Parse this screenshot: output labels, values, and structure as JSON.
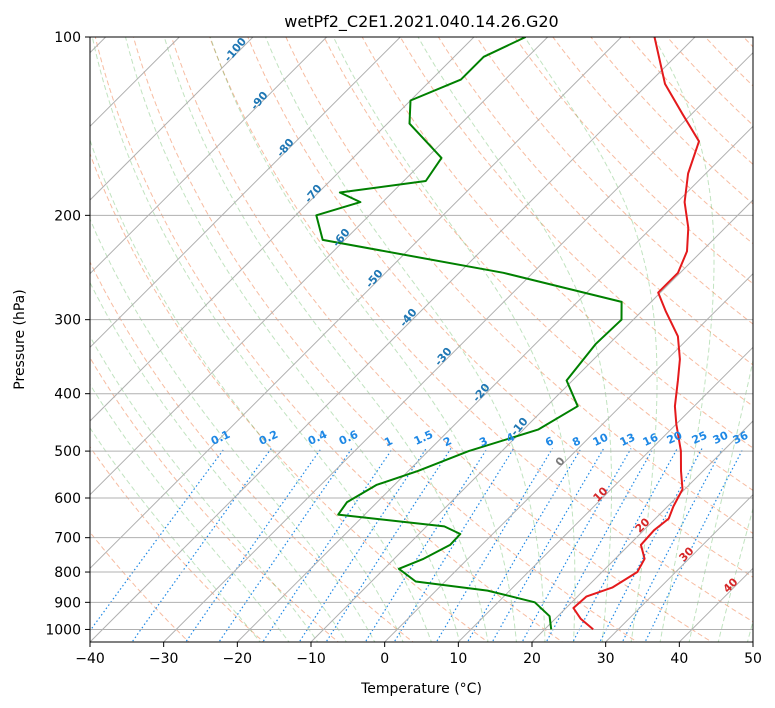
{
  "chart_data": {
    "type": "line",
    "title": "wetPf2_C2E1.2021.040.14.26.G20",
    "xlabel": "Temperature (°C)",
    "ylabel": "Pressure (hPa)",
    "xlim": [
      -40,
      50
    ],
    "ylim": [
      1050,
      100
    ],
    "y_scale": "log",
    "skew": true,
    "grid": true,
    "x_ticks": [
      "−40",
      "−30",
      "−20",
      "−10",
      "0",
      "10",
      "20",
      "30",
      "40",
      "50"
    ],
    "y_ticks": [
      "100",
      "200",
      "300",
      "400",
      "500",
      "600",
      "700",
      "800",
      "900",
      "1000"
    ],
    "series": [
      {
        "color": "#e41a1c",
        "points": [
          [
            26.6,
            1000
          ],
          [
            23.5,
            960
          ],
          [
            21.0,
            920
          ],
          [
            21.2,
            880
          ],
          [
            23.5,
            850
          ],
          [
            24.8,
            800
          ],
          [
            24.0,
            760
          ],
          [
            21.6,
            720
          ],
          [
            21.4,
            680
          ],
          [
            21.8,
            650
          ],
          [
            20.8,
            620
          ],
          [
            19.7,
            580
          ],
          [
            17.0,
            540
          ],
          [
            14.3,
            500
          ],
          [
            10.0,
            450
          ],
          [
            7.4,
            420
          ],
          [
            4.3,
            380
          ],
          [
            1.7,
            350
          ],
          [
            -1.7,
            320
          ],
          [
            -6.8,
            290
          ],
          [
            -10.3,
            270
          ],
          [
            -10.3,
            250
          ],
          [
            -12.0,
            230
          ],
          [
            -15.0,
            210
          ],
          [
            -19.0,
            190
          ],
          [
            -22.4,
            170
          ],
          [
            -25.3,
            150
          ],
          [
            -31.2,
            135
          ],
          [
            -37.7,
            120
          ],
          [
            -45.5,
            100
          ]
        ]
      },
      {
        "color": "#008000",
        "points": [
          [
            20.9,
            1000
          ],
          [
            18.9,
            950
          ],
          [
            15.0,
            900
          ],
          [
            7.0,
            860
          ],
          [
            -4.0,
            830
          ],
          [
            -8.0,
            790
          ],
          [
            -6.0,
            760
          ],
          [
            -4.3,
            720
          ],
          [
            -4.4,
            690
          ],
          [
            -7.6,
            670
          ],
          [
            -23.6,
            640
          ],
          [
            -24.1,
            610
          ],
          [
            -22.4,
            570
          ],
          [
            -18.7,
            540
          ],
          [
            -14.5,
            500
          ],
          [
            -8.0,
            460
          ],
          [
            -5.8,
            420
          ],
          [
            -10.8,
            380
          ],
          [
            -11.8,
            330
          ],
          [
            -11.6,
            300
          ],
          [
            -14.0,
            280
          ],
          [
            -34.0,
            250
          ],
          [
            -63.0,
            220
          ],
          [
            -67.2,
            200
          ],
          [
            -63.0,
            190
          ],
          [
            -67.1,
            183
          ],
          [
            -57.0,
            175
          ],
          [
            -58.0,
            160
          ],
          [
            -67.0,
            140
          ],
          [
            -70.0,
            128
          ],
          [
            -66.0,
            118
          ],
          [
            -66.0,
            108
          ],
          [
            -63.0,
            100
          ]
        ]
      }
    ],
    "annotations": {
      "dry_adiabats": [
        "-100",
        "-90",
        "-80",
        "-70",
        "-60",
        "-50",
        "-40",
        "-30",
        "-20",
        "-10",
        "0"
      ],
      "moist_adiabats": [
        "10",
        "20",
        "30",
        "40"
      ],
      "mixing_ratios": [
        "0.1",
        "0.2",
        "0.4",
        "0.6",
        "1",
        "1.5",
        "2",
        "3",
        "4",
        "6",
        "8",
        "10",
        "13",
        "16",
        "20",
        "25",
        "30",
        "36"
      ]
    }
  }
}
